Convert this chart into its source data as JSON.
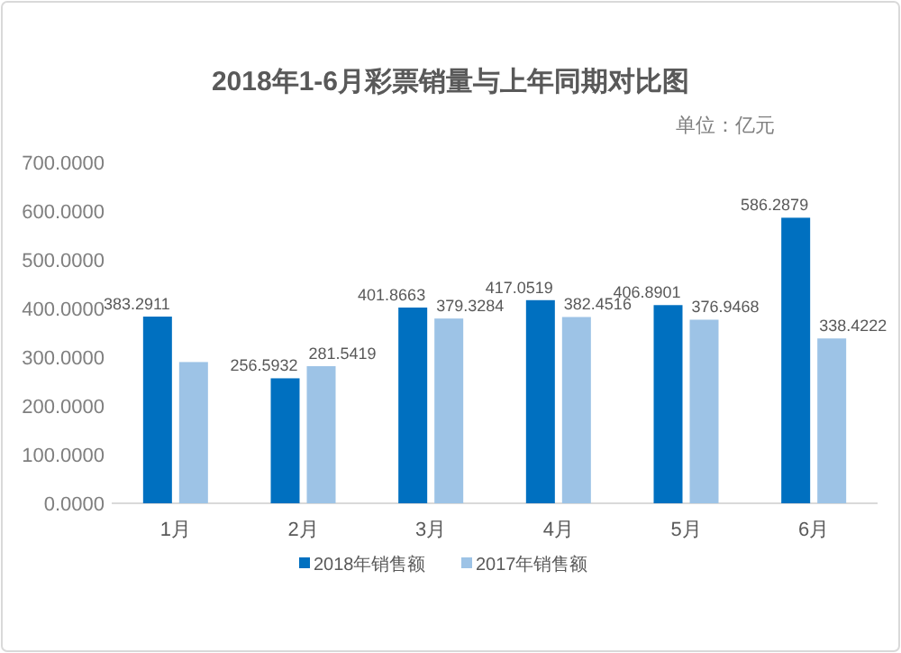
{
  "chart_data": {
    "type": "bar",
    "title": "2018年1-6月彩票销量与上年同期对比图",
    "subtitle": "单位：亿元",
    "categories": [
      "1月",
      "2月",
      "3月",
      "4月",
      "5月",
      "6月"
    ],
    "series": [
      {
        "name": "2018年销售额",
        "color": "#0070c0",
        "values": [
          383.2911,
          256.5932,
          401.8663,
          417.0519,
          406.8901,
          586.2879
        ],
        "value_labels": [
          "383.2911",
          "256.5932",
          "401.8663",
          "417.0519",
          "406.8901",
          "586.2879"
        ]
      },
      {
        "name": "2017年销售额",
        "color": "#9dc3e6",
        "values": [
          290,
          281.5419,
          379.3284,
          382.4516,
          376.9468,
          338.4222
        ],
        "value_labels": [
          null,
          "281.5419",
          "379.3284",
          "382.4516",
          "376.9468",
          "338.4222"
        ]
      }
    ],
    "ylim": [
      0,
      700
    ],
    "yticks": [
      {
        "value": 0,
        "label": "0.0000"
      },
      {
        "value": 100,
        "label": "100.0000"
      },
      {
        "value": 200,
        "label": "200.0000"
      },
      {
        "value": 300,
        "label": "300.0000"
      },
      {
        "value": 400,
        "label": "400.0000"
      },
      {
        "value": 500,
        "label": "500.0000"
      },
      {
        "value": 600,
        "label": "600.0000"
      },
      {
        "value": 700,
        "label": "700.0000"
      }
    ],
    "legend": "bottom",
    "grid": false
  }
}
